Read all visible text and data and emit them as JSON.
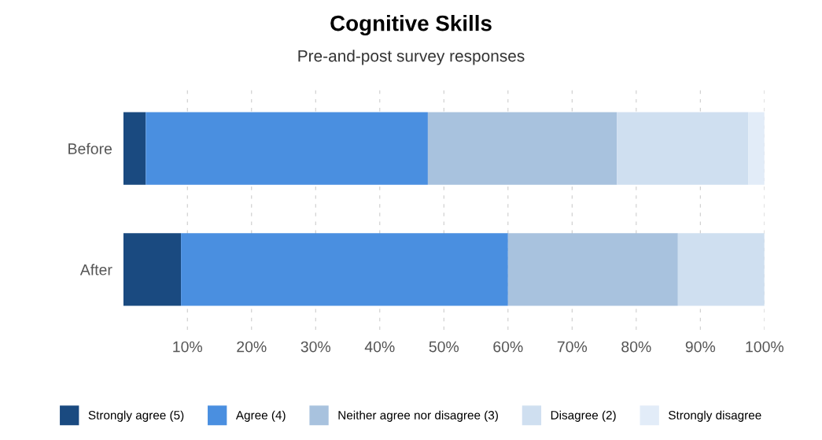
{
  "chart_data": {
    "type": "bar",
    "orientation": "horizontal",
    "stacked": true,
    "title": "Cognitive Skills",
    "subtitle": "Pre-and-post survey responses",
    "categories": [
      "Before",
      "After"
    ],
    "series": [
      {
        "name": "Strongly agree (5)",
        "color": "#1a4a80",
        "values": [
          3.5,
          9
        ]
      },
      {
        "name": "Agree (4)",
        "color": "#4a8fe0",
        "values": [
          44,
          51
        ]
      },
      {
        "name": "Neither agree nor disagree (3)",
        "color": "#a8c2de",
        "values": [
          29.5,
          26.5
        ]
      },
      {
        "name": "Disagree (2)",
        "color": "#cfdff0",
        "values": [
          20.5,
          13.5
        ]
      },
      {
        "name": "Strongly disagree",
        "color": "#e2ecf8",
        "values": [
          2.5,
          0
        ]
      }
    ],
    "xlim": [
      0,
      100
    ],
    "xticks": [
      {
        "value": 10,
        "label": "10%"
      },
      {
        "value": 20,
        "label": "20%"
      },
      {
        "value": 30,
        "label": "30%"
      },
      {
        "value": 40,
        "label": "40%"
      },
      {
        "value": 50,
        "label": "50%"
      },
      {
        "value": 60,
        "label": "60%"
      },
      {
        "value": 70,
        "label": "70%"
      },
      {
        "value": 80,
        "label": "80%"
      },
      {
        "value": 90,
        "label": "90%"
      },
      {
        "value": 100,
        "label": "100%"
      }
    ],
    "grid": "x",
    "legend": "bottom"
  }
}
